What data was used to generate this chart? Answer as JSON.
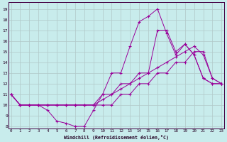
{
  "xlabel": "Windchill (Refroidissement éolien,°C)",
  "bg_color": "#c8ecec",
  "line_color": "#990099",
  "grid_color": "#b0c8c8",
  "x_ticks": [
    0,
    1,
    2,
    3,
    4,
    5,
    6,
    7,
    8,
    9,
    10,
    11,
    12,
    13,
    14,
    15,
    16,
    17,
    18,
    19,
    20,
    21,
    22,
    23
  ],
  "y_ticks": [
    8,
    9,
    10,
    11,
    12,
    13,
    14,
    15,
    16,
    17,
    18,
    19
  ],
  "ylim": [
    7.8,
    19.6
  ],
  "xlim": [
    -0.3,
    23.3
  ],
  "series": [
    [
      11,
      10,
      10,
      10,
      9.5,
      8.5,
      8.3,
      8.0,
      8.0,
      9.5,
      11.0,
      13.0,
      13.0,
      15.5,
      17.8,
      18.3,
      19.0,
      16.7,
      14.7,
      15.7,
      14.7,
      12.5,
      12.0,
      12.0
    ],
    [
      11,
      10,
      10,
      10,
      10,
      10,
      10,
      10,
      10,
      10,
      10,
      10,
      11,
      11,
      12,
      12,
      13,
      13,
      14,
      14,
      15,
      15,
      12.5,
      12
    ],
    [
      11,
      10,
      10,
      10,
      10,
      10,
      10,
      10,
      10,
      10,
      10.5,
      11,
      11.5,
      12,
      12.5,
      13,
      13.5,
      14,
      14.5,
      15,
      15.5,
      14.7,
      12.5,
      12
    ],
    [
      11,
      10,
      10,
      10,
      10,
      10,
      10,
      10,
      10,
      10,
      11,
      11,
      12,
      12,
      13,
      13,
      17,
      17,
      15,
      15.7,
      14.7,
      12.5,
      12,
      12
    ]
  ]
}
